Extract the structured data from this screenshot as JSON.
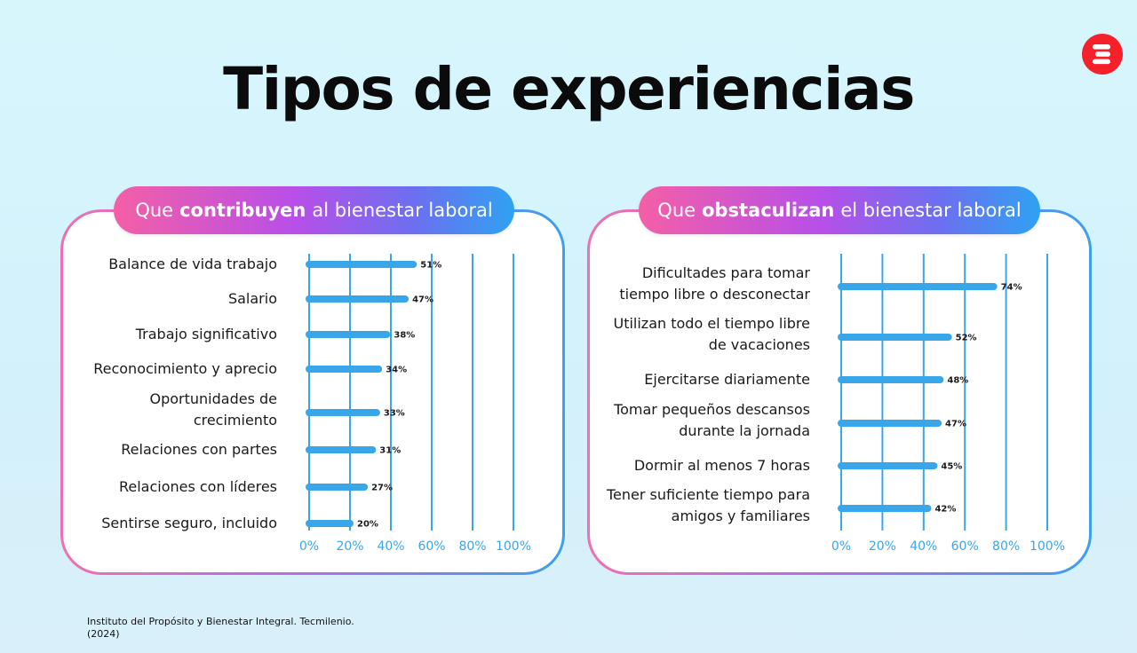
{
  "title": "Tipos de experiencias",
  "colors": {
    "bar": "#3aa6ea",
    "grid": "#3aa6ea",
    "logo": "#f5202a"
  },
  "logo_icon": "red-circle-e-logo",
  "panels": [
    {
      "pre": "Que",
      "bold": "contribuyen",
      "post": "al bienestar laboral"
    },
    {
      "pre": "Que",
      "bold": "obstaculizan",
      "post": "el bienestar laboral"
    }
  ],
  "source": [
    "Instituto del Propósito y Bienestar Integral. Tecmilenio.",
    "(2024)"
  ],
  "chart_data": [
    {
      "type": "bar",
      "orientation": "horizontal",
      "categories": [
        [
          "Balance de vida trabajo"
        ],
        [
          "Salario"
        ],
        [
          "Trabajo significativo"
        ],
        [
          "Reconocimiento y aprecio"
        ],
        [
          "Oportunidades de",
          "crecimiento"
        ],
        [
          "Relaciones con partes"
        ],
        [
          "Relaciones con líderes"
        ],
        [
          "Sentirse seguro, incluido"
        ]
      ],
      "values": [
        51,
        47,
        38,
        34,
        33,
        31,
        27,
        20
      ],
      "value_labels": [
        "51%",
        "47%",
        "38%",
        "34%",
        "33%",
        "31%",
        "27%",
        "20%"
      ],
      "xlim": [
        0,
        100
      ],
      "ticks": [
        "0%",
        "20%",
        "40%",
        "60%",
        "80%",
        "100%"
      ],
      "grid": true
    },
    {
      "type": "bar",
      "orientation": "horizontal",
      "categories": [
        [
          "Dificultades para tomar",
          "tiempo libre o desconectar"
        ],
        [
          "Utilizan todo el tiempo libre",
          "de vacaciones"
        ],
        [
          "Ejercitarse diariamente"
        ],
        [
          "Tomar pequeños descansos",
          "durante la jornada"
        ],
        [
          "Dormir al menos 7 horas"
        ],
        [
          "Tener suficiente tiempo para",
          "amigos y familiares"
        ]
      ],
      "values": [
        74,
        52,
        48,
        47,
        45,
        42
      ],
      "value_labels": [
        "74%",
        "52%",
        "48%",
        "47%",
        "45%",
        "42%"
      ],
      "xlim": [
        0,
        100
      ],
      "ticks": [
        "0%",
        "20%",
        "40%",
        "60%",
        "80%",
        "100%"
      ],
      "grid": true
    }
  ]
}
